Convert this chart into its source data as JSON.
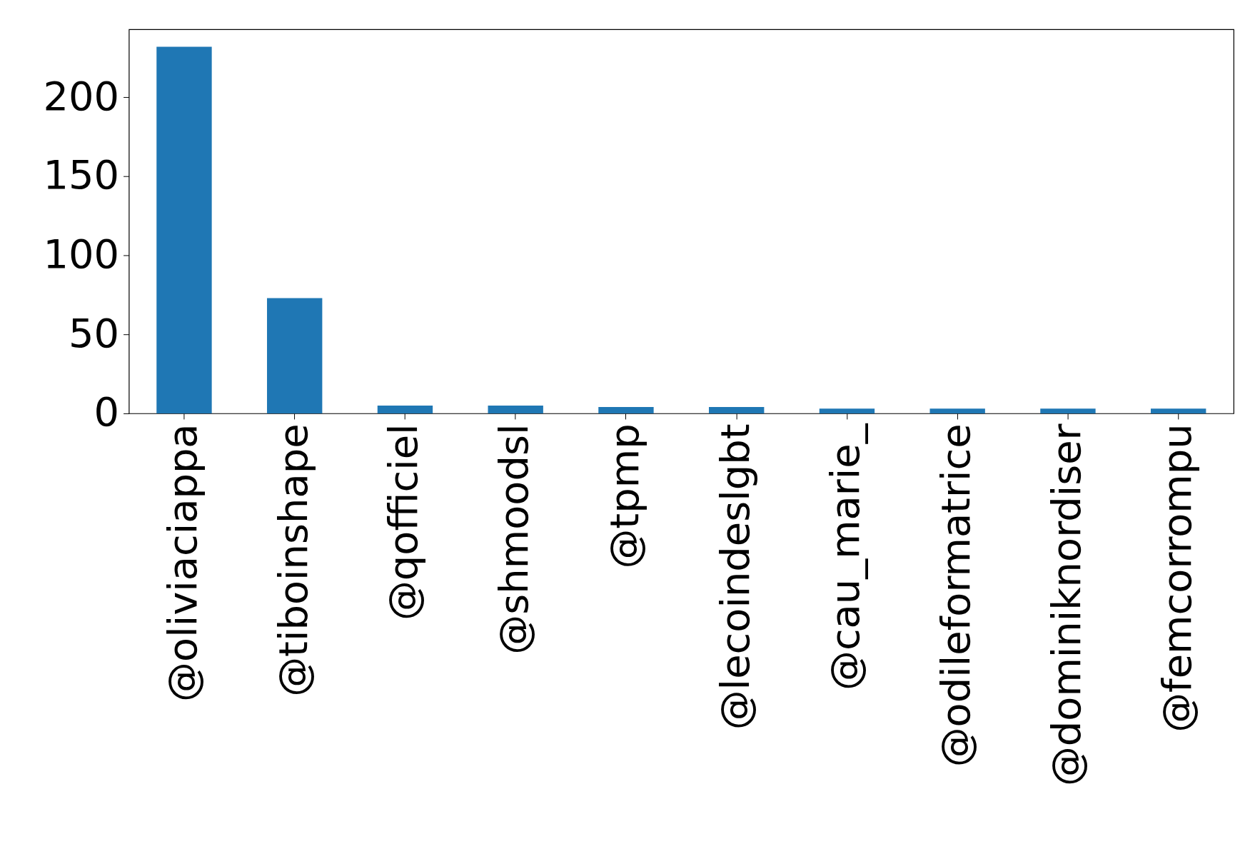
{
  "chart_data": {
    "type": "bar",
    "categories": [
      "@oliviaciappa",
      "@tiboinshape",
      "@qofficiel",
      "@shmoodsl",
      "@tpmp",
      "@lecoindeslgbt",
      "@cau_marie_",
      "@odileformatrice",
      "@dominiknordiser",
      "@femcorrompu"
    ],
    "values": [
      232,
      73,
      5,
      5,
      4,
      4,
      3,
      3,
      3,
      3
    ],
    "color": "#1f77b4",
    "ylim": [
      0,
      243
    ],
    "yticks": [
      0,
      50,
      100,
      150,
      200
    ],
    "grid": false
  }
}
